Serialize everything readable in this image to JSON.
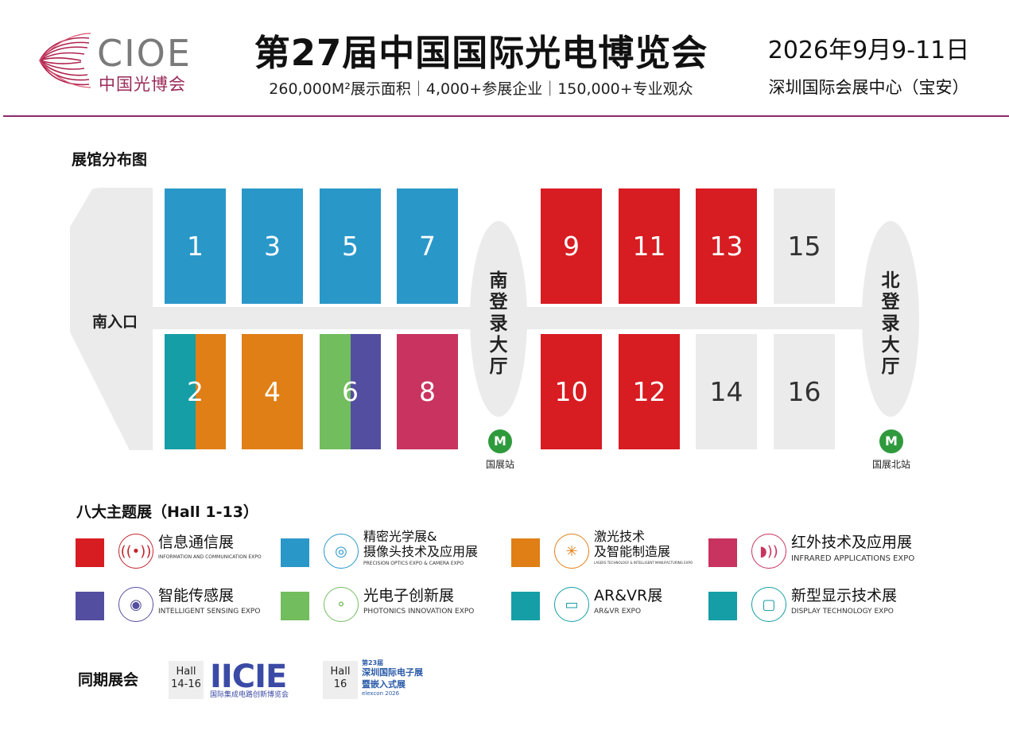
{
  "header": {
    "logo_text": "CIOE",
    "logo_cn": "中国光博会",
    "title": "第27届中国国际光电博览会",
    "subtitle": "260,000M²展示面积｜4,000+参展企业｜150,000+专业观众",
    "date": "2026年9月9-11日",
    "venue": "深圳国际会展中心（宝安）"
  },
  "map": {
    "title": "展馆分布图",
    "south_entrance": "南入口",
    "south_lobby": "南登录大厅",
    "north_lobby": "北登录大厅",
    "metro_south": "国展站",
    "metro_north": "国展北站",
    "metro_icon": "metro-icon",
    "halls_top": [
      "1",
      "3",
      "5",
      "7",
      "9",
      "11",
      "13",
      "15"
    ],
    "halls_bottom": [
      "2",
      "4",
      "6",
      "8",
      "10",
      "12",
      "14",
      "16"
    ]
  },
  "colors": {
    "blue": "#2a97c9",
    "red": "#d71c22",
    "orange": "#e07f16",
    "teal": "#159ea5",
    "green": "#72bd5e",
    "purple": "#544ea0",
    "pink": "#c8335f",
    "gray": "#ebebeb",
    "accent_line": "#8c2a6a"
  },
  "legend": {
    "title": "八大主题展（Hall 1-13）",
    "items": [
      {
        "zh": "信息通信展",
        "en": "INFORMATION AND COMMUNICATION EXPO",
        "icon": "antenna-icon"
      },
      {
        "zh": "精密光学展&摄像头技术及应用展",
        "zh1": "精密光学展&",
        "zh2": "摄像头技术及应用展",
        "en": "PRECISION OPTICS EXPO & CAMERA EXPO",
        "icon": "lens-icon"
      },
      {
        "zh": "激光技术及智能制造展",
        "zh1": "激光技术",
        "zh2": "及智能制造展",
        "en": "LASERS TECHNOLOGY & INTELLIGENT MANUFACTURING EXPO",
        "icon": "laser-icon"
      },
      {
        "zh": "红外技术及应用展",
        "en": "INFRARED APPLICATIONS EXPO",
        "icon": "infrared-icon"
      },
      {
        "zh": "智能传感展",
        "en": "INTELLIGENT SENSING EXPO",
        "icon": "eye-icon"
      },
      {
        "zh": "光电子创新展",
        "en": "PHOTONICS INNOVATION EXPO",
        "icon": "molecule-icon"
      },
      {
        "zh": "AR&VR展",
        "en": "AR&VR EXPO",
        "icon": "vr-headset-icon"
      },
      {
        "zh": "新型显示技术展",
        "en": "DISPLAY TECHNOLOGY EXPO",
        "icon": "display-icon"
      }
    ]
  },
  "concurrent": {
    "title": "同期展会",
    "hall_a_word": "Hall",
    "hall_a_range": "14-16",
    "iicie_logo": "IICIE",
    "iicie_cn": "国际集成电路创新博览会",
    "hall_b_word": "Hall",
    "hall_b_range": "16",
    "elexcon_edition": "第23届",
    "elexcon_line1": "深圳国际电子展",
    "elexcon_line2": "暨嵌入式展",
    "elexcon_brand": "elexcon 2026"
  }
}
